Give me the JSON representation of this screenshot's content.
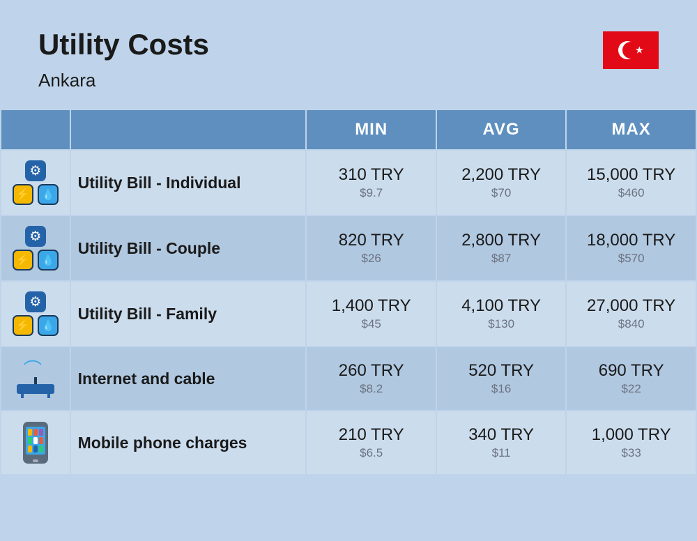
{
  "header": {
    "title": "Utility Costs",
    "subtitle": "Ankara"
  },
  "columns": {
    "min": "MIN",
    "avg": "AVG",
    "max": "MAX"
  },
  "rows": [
    {
      "icon": "utility",
      "label": "Utility Bill - Individual",
      "min_primary": "310 TRY",
      "min_secondary": "$9.7",
      "avg_primary": "2,200 TRY",
      "avg_secondary": "$70",
      "max_primary": "15,000 TRY",
      "max_secondary": "$460"
    },
    {
      "icon": "utility",
      "label": "Utility Bill - Couple",
      "min_primary": "820 TRY",
      "min_secondary": "$26",
      "avg_primary": "2,800 TRY",
      "avg_secondary": "$87",
      "max_primary": "18,000 TRY",
      "max_secondary": "$570"
    },
    {
      "icon": "utility",
      "label": "Utility Bill - Family",
      "min_primary": "1,400 TRY",
      "min_secondary": "$45",
      "avg_primary": "4,100 TRY",
      "avg_secondary": "$130",
      "max_primary": "27,000 TRY",
      "max_secondary": "$840"
    },
    {
      "icon": "router",
      "label": "Internet and cable",
      "min_primary": "260 TRY",
      "min_secondary": "$8.2",
      "avg_primary": "520 TRY",
      "avg_secondary": "$16",
      "max_primary": "690 TRY",
      "max_secondary": "$22"
    },
    {
      "icon": "phone",
      "label": "Mobile phone charges",
      "min_primary": "210 TRY",
      "min_secondary": "$6.5",
      "avg_primary": "340 TRY",
      "avg_secondary": "$11",
      "max_primary": "1,000 TRY",
      "max_secondary": "$33"
    }
  ],
  "colors": {
    "page_bg": "#bfd4ea",
    "header_bg": "#5e8fbf",
    "row_light": "#cbdced",
    "row_dark": "#b0c8e0",
    "text_primary": "#1a1a1a",
    "text_secondary": "#6b7280",
    "flag_bg": "#e30a17"
  }
}
